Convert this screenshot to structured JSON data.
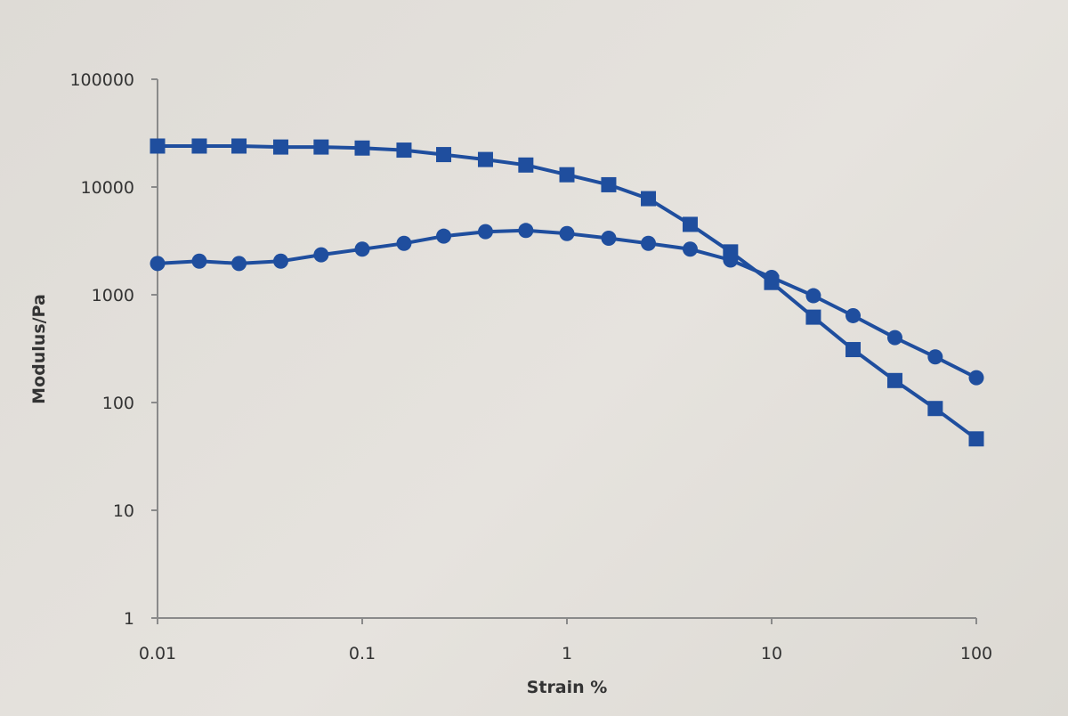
{
  "chart_data": {
    "type": "line",
    "title": "",
    "xlabel": "Strain %",
    "ylabel": "Modulus/Pa",
    "xscale": "log",
    "yscale": "log",
    "xlim": [
      0.01,
      100
    ],
    "ylim": [
      1,
      100000
    ],
    "grid": false,
    "legend": "none",
    "x_ticks": [
      "0.01",
      "0.1",
      "1",
      "10",
      "100"
    ],
    "y_ticks": [
      "1",
      "10",
      "100",
      "1000",
      "10000",
      "100000"
    ],
    "series": [
      {
        "marker": "square",
        "color": "#1f4e9e",
        "points": [
          [
            0.01,
            24000
          ],
          [
            0.016,
            24000
          ],
          [
            0.025,
            24000
          ],
          [
            0.04,
            23500
          ],
          [
            0.063,
            23500
          ],
          [
            0.1,
            23000
          ],
          [
            0.16,
            22000
          ],
          [
            0.25,
            20000
          ],
          [
            0.4,
            18000
          ],
          [
            0.63,
            16000
          ],
          [
            1,
            13000
          ],
          [
            1.6,
            10500
          ],
          [
            2.5,
            7800
          ],
          [
            4,
            4500
          ],
          [
            6.3,
            2500
          ],
          [
            10,
            1300
          ],
          [
            16,
            620
          ],
          [
            25,
            310
          ],
          [
            40,
            160
          ],
          [
            63,
            88
          ],
          [
            100,
            46
          ]
        ]
      },
      {
        "marker": "circle",
        "color": "#1f4e9e",
        "points": [
          [
            0.01,
            1950
          ],
          [
            0.016,
            2050
          ],
          [
            0.025,
            1950
          ],
          [
            0.04,
            2050
          ],
          [
            0.063,
            2350
          ],
          [
            0.1,
            2650
          ],
          [
            0.16,
            3000
          ],
          [
            0.25,
            3500
          ],
          [
            0.4,
            3850
          ],
          [
            0.63,
            3950
          ],
          [
            1,
            3700
          ],
          [
            1.6,
            3350
          ],
          [
            2.5,
            3000
          ],
          [
            4,
            2650
          ],
          [
            6.3,
            2100
          ],
          [
            10,
            1450
          ],
          [
            16,
            980
          ],
          [
            25,
            640
          ],
          [
            40,
            400
          ],
          [
            63,
            265
          ],
          [
            100,
            170
          ]
        ]
      }
    ]
  }
}
